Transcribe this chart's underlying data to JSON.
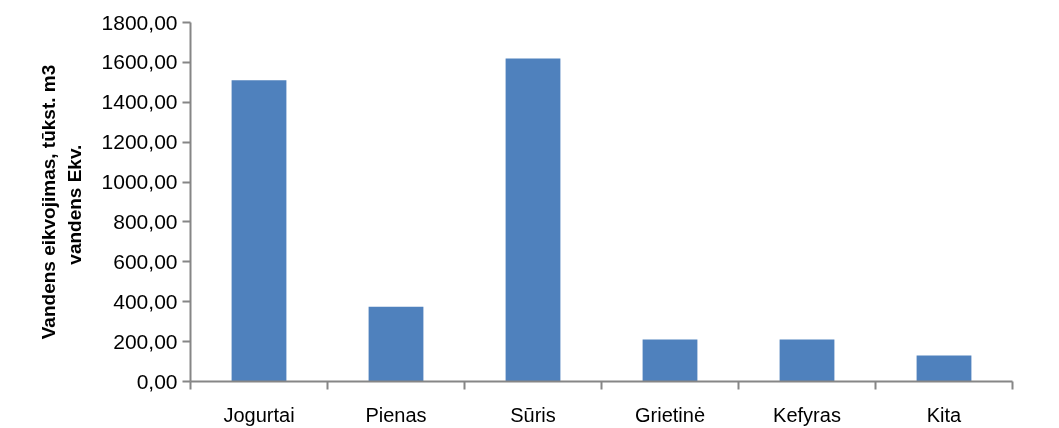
{
  "chart_data": {
    "type": "bar",
    "ylabel": "Vandens eikvojimas, tūkst. m3\nvandens  Ekv.",
    "categories": [
      "Jogurtai",
      "Pienas",
      "Sūris",
      "Grietinė",
      "Kefyras",
      "Kita"
    ],
    "values": [
      1510,
      375,
      1620,
      210,
      210,
      130
    ],
    "color": "#4f81bd",
    "ylim": [
      0,
      1800
    ],
    "yticks": [
      {
        "value": 0,
        "label": "0,00"
      },
      {
        "value": 200,
        "label": "200,00"
      },
      {
        "value": 400,
        "label": "400,00"
      },
      {
        "value": 600,
        "label": "600,00"
      },
      {
        "value": 800,
        "label": "800,00"
      },
      {
        "value": 1000,
        "label": "1000,00"
      },
      {
        "value": 1200,
        "label": "1200,00"
      },
      {
        "value": 1400,
        "label": "1400,00"
      },
      {
        "value": 1600,
        "label": "1600,00"
      },
      {
        "value": 1800,
        "label": "1800,00"
      }
    ],
    "grid": false
  }
}
